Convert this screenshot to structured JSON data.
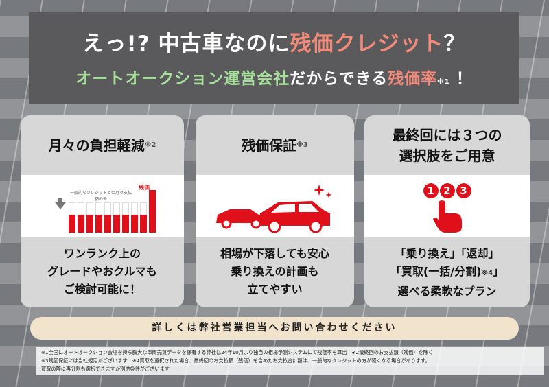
{
  "header": {
    "line1_a": "えっ!? 中古車なのに",
    "line1_b": "残価クレジット",
    "line1_c": "？",
    "line2_a": "オートオークション運営会社",
    "line2_b": "だからできる",
    "line2_c": "残価率",
    "line2_note": "※1",
    "line2_d": "！"
  },
  "cards": [
    {
      "title": "月々の負担軽減",
      "note": "※2",
      "chart_label": "一般的なクレジットとの月々支払額の差",
      "residual_label": "残価",
      "body": [
        "ワンランク上の",
        "グレードやおクルマも",
        "ご検討可能に！"
      ]
    },
    {
      "title": "残価保証",
      "note": "※3",
      "body": [
        "相場が下落しても安心",
        "乗り換えの計画も",
        "立てやすい"
      ]
    },
    {
      "title_lines": [
        "最終回には３つの",
        "選択肢をご用意"
      ],
      "numbers": [
        "1",
        "2",
        "3"
      ],
      "body": [
        "「乗り換え」「返却」",
        "「買取(一括/分割)",
        "選べる柔軟なプラン"
      ],
      "body_note": "※4",
      "body_close": "」"
    }
  ],
  "cta": "詳しくは弊社営業担当へお問い合わせください",
  "footnotes": [
    "※1全国にオートオークション会場を持ち膨大な車両売買データを保有する弊社は24年10月より独自の相場予測システムにて残価率を算出　※2最終回のお支払額（残価）を除く",
    "※3残価保証には当社規定がございます　※4買取を選択された場合、最終回のお支払額（残価）を含めたお支払合計額は、一般的なクレジットの方が軽くなる場合があります。",
    "買取の際に再分割も選択できますが別途条件がございます"
  ],
  "colors": {
    "accent": "#e0101a",
    "salmon": "#f28a7a",
    "green": "#a6e09a"
  }
}
